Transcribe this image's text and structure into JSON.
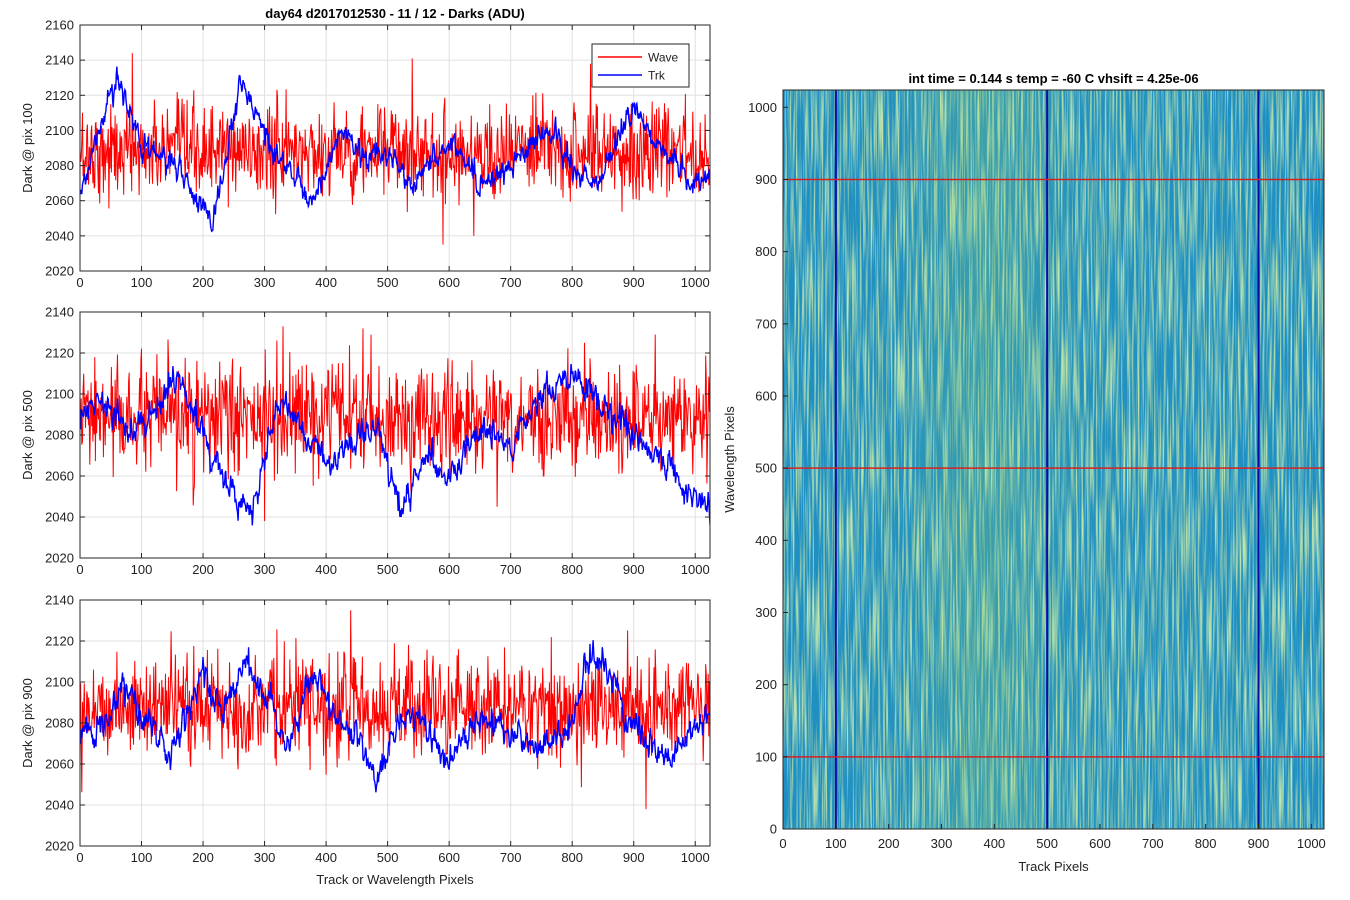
{
  "figure_title": "day64 d2017012530 - 11 / 12 - Darks (ADU)",
  "colors": {
    "wave": "#ff0000",
    "trk": "#0000ff",
    "axis": "#262626",
    "grid": "#e0e0e0",
    "heatmap_base": "#1e8fc4",
    "heatmap_light": "#8ac96c",
    "marker_horizontal": "#d62020",
    "marker_vertical": "#0a0aa8"
  },
  "chart_data": [
    {
      "type": "line",
      "title": "day64 d2017012530 - 11 / 12 - Darks (ADU)",
      "xlabel": "",
      "ylabel": "Dark @ pix 100",
      "xlim": [
        0,
        1024
      ],
      "ylim": [
        2020,
        2160
      ],
      "xticks": [
        0,
        100,
        200,
        300,
        400,
        500,
        600,
        700,
        800,
        900,
        1000
      ],
      "yticks": [
        2020,
        2040,
        2060,
        2080,
        2100,
        2120,
        2140,
        2160
      ],
      "grid": true,
      "legend": "top-right",
      "series": [
        {
          "name": "Wave",
          "color": "#ff0000",
          "mean": 2088,
          "sd": 13,
          "min": 2035,
          "max": 2144,
          "description_points": [
            [
              0,
              2090
            ],
            [
              85,
              2144
            ],
            [
              540,
              2141
            ],
            [
              830,
              2138
            ],
            [
              590,
              2035
            ],
            [
              640,
              2040
            ]
          ]
        },
        {
          "name": "Trk",
          "color": "#0000ff",
          "baseline": 2085,
          "anchors": [
            [
              0,
              2062
            ],
            [
              30,
              2100
            ],
            [
              60,
              2131
            ],
            [
              100,
              2092
            ],
            [
              150,
              2080
            ],
            [
              200,
              2056
            ],
            [
              215,
              2042
            ],
            [
              260,
              2128
            ],
            [
              300,
              2100
            ],
            [
              350,
              2070
            ],
            [
              380,
              2060
            ],
            [
              420,
              2100
            ],
            [
              460,
              2085
            ],
            [
              500,
              2085
            ],
            [
              540,
              2070
            ],
            [
              600,
              2095
            ],
            [
              650,
              2070
            ],
            [
              700,
              2080
            ],
            [
              770,
              2100
            ],
            [
              800,
              2080
            ],
            [
              840,
              2070
            ],
            [
              900,
              2112
            ],
            [
              940,
              2090
            ],
            [
              1000,
              2070
            ],
            [
              1024,
              2075
            ]
          ]
        }
      ]
    },
    {
      "type": "line",
      "title": "",
      "xlabel": "",
      "ylabel": "Dark @ pix 500",
      "xlim": [
        0,
        1024
      ],
      "ylim": [
        2020,
        2140
      ],
      "xticks": [
        0,
        100,
        200,
        300,
        400,
        500,
        600,
        700,
        800,
        900,
        1000
      ],
      "yticks": [
        2020,
        2040,
        2060,
        2080,
        2100,
        2120,
        2140
      ],
      "grid": true,
      "series": [
        {
          "name": "Wave",
          "color": "#ff0000",
          "mean": 2088,
          "sd": 13,
          "min": 2038,
          "max": 2133,
          "description_points": [
            [
              300,
              2038
            ],
            [
              330,
              2133
            ],
            [
              460,
              2132
            ],
            [
              820,
              2125
            ]
          ]
        },
        {
          "name": "Trk",
          "color": "#0000ff",
          "baseline": 2082,
          "anchors": [
            [
              0,
              2090
            ],
            [
              30,
              2098
            ],
            [
              80,
              2080
            ],
            [
              120,
              2090
            ],
            [
              160,
              2110
            ],
            [
              200,
              2080
            ],
            [
              250,
              2050
            ],
            [
              280,
              2040
            ],
            [
              320,
              2095
            ],
            [
              360,
              2085
            ],
            [
              400,
              2065
            ],
            [
              440,
              2075
            ],
            [
              480,
              2085
            ],
            [
              520,
              2043
            ],
            [
              560,
              2070
            ],
            [
              600,
              2060
            ],
            [
              650,
              2085
            ],
            [
              700,
              2075
            ],
            [
              750,
              2100
            ],
            [
              800,
              2110
            ],
            [
              850,
              2095
            ],
            [
              900,
              2080
            ],
            [
              950,
              2065
            ],
            [
              1000,
              2050
            ],
            [
              1024,
              2045
            ]
          ]
        }
      ]
    },
    {
      "type": "line",
      "title": "",
      "xlabel": "Track or Wavelength Pixels",
      "ylabel": "Dark @ pix 900",
      "xlim": [
        0,
        1024
      ],
      "ylim": [
        2020,
        2140
      ],
      "xticks": [
        0,
        100,
        200,
        300,
        400,
        500,
        600,
        700,
        800,
        900,
        1000
      ],
      "yticks": [
        2020,
        2040,
        2060,
        2080,
        2100,
        2120,
        2140
      ],
      "grid": true,
      "series": [
        {
          "name": "Wave",
          "color": "#ff0000",
          "mean": 2088,
          "sd": 12,
          "min": 2038,
          "max": 2135,
          "description_points": [
            [
              440,
              2135
            ],
            [
              920,
              2038
            ]
          ]
        },
        {
          "name": "Trk",
          "color": "#0000ff",
          "baseline": 2083,
          "anchors": [
            [
              0,
              2075
            ],
            [
              40,
              2080
            ],
            [
              70,
              2100
            ],
            [
              100,
              2085
            ],
            [
              150,
              2065
            ],
            [
              200,
              2105
            ],
            [
              230,
              2085
            ],
            [
              270,
              2110
            ],
            [
              300,
              2095
            ],
            [
              340,
              2070
            ],
            [
              380,
              2105
            ],
            [
              420,
              2080
            ],
            [
              460,
              2070
            ],
            [
              480,
              2050
            ],
            [
              520,
              2085
            ],
            [
              560,
              2080
            ],
            [
              600,
              2060
            ],
            [
              650,
              2085
            ],
            [
              700,
              2075
            ],
            [
              740,
              2065
            ],
            [
              800,
              2080
            ],
            [
              820,
              2108
            ],
            [
              850,
              2112
            ],
            [
              880,
              2090
            ],
            [
              920,
              2070
            ],
            [
              960,
              2060
            ],
            [
              1000,
              2080
            ],
            [
              1024,
              2085
            ]
          ]
        }
      ]
    },
    {
      "type": "heatmap",
      "title": "int time = 0.144 s   temp = -60 C   vhsift = 4.25e-06",
      "xlabel": "Track Pixels",
      "ylabel": "Wavelength Pixels",
      "xlim": [
        0,
        1024
      ],
      "ylim": [
        0,
        1024
      ],
      "xticks": [
        0,
        100,
        200,
        300,
        400,
        500,
        600,
        700,
        800,
        900,
        1000
      ],
      "yticks": [
        0,
        100,
        200,
        300,
        400,
        500,
        600,
        700,
        800,
        900,
        1000
      ],
      "grid": false,
      "marker_lines": {
        "horizontal_at_wavelength": [
          100,
          500,
          900
        ],
        "vertical_at_track": [
          100,
          500,
          900
        ]
      },
      "brighter_region_track": [
        300,
        500
      ]
    }
  ]
}
